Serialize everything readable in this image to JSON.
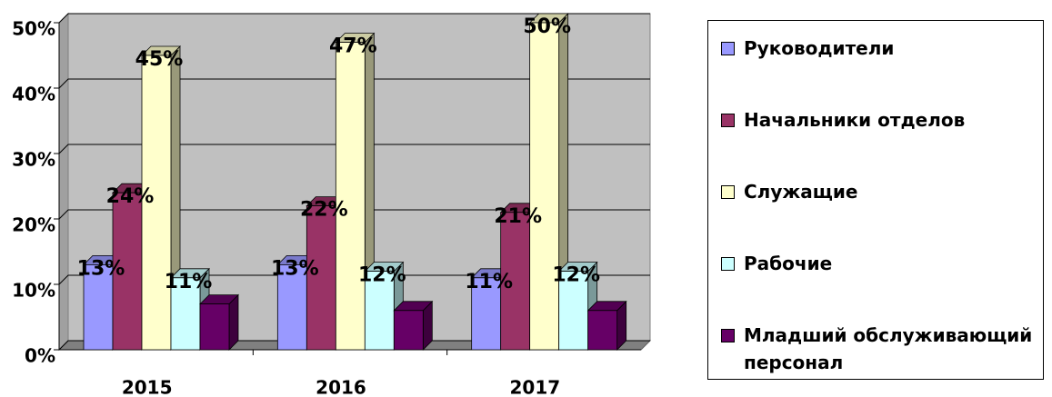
{
  "chart_data": {
    "type": "bar3d",
    "categories": [
      "2015",
      "2016",
      "2017"
    ],
    "series": [
      {
        "name": "Руководители",
        "color": "#9999ff",
        "values": [
          13,
          13,
          11
        ],
        "value_labels": [
          "13%",
          "13%",
          "11%"
        ]
      },
      {
        "name": "Начальники отделов",
        "color": "#993366",
        "values": [
          24,
          22,
          21
        ],
        "value_labels": [
          "24%",
          "22%",
          "21%"
        ]
      },
      {
        "name": "Служащие",
        "color": "#ffffcc",
        "values": [
          45,
          47,
          50
        ],
        "value_labels": [
          "45%",
          "47%",
          "50%"
        ]
      },
      {
        "name": "Рабочие",
        "color": "#ccffff",
        "values": [
          11,
          12,
          12
        ],
        "value_labels": [
          "11%",
          "12%",
          "12%"
        ]
      },
      {
        "name": "Младший обслуживающий персонал",
        "color": "#660066",
        "values": [
          7,
          6,
          6
        ]
      }
    ],
    "ylim": [
      0,
      50
    ],
    "yticks": [
      {
        "value": 0,
        "label": "0%"
      },
      {
        "value": 10,
        "label": "10%"
      },
      {
        "value": 20,
        "label": "20%"
      },
      {
        "value": 30,
        "label": "30%"
      },
      {
        "value": 40,
        "label": "40%"
      },
      {
        "value": 50,
        "label": "50%"
      }
    ],
    "grid": true,
    "legend": "right"
  }
}
